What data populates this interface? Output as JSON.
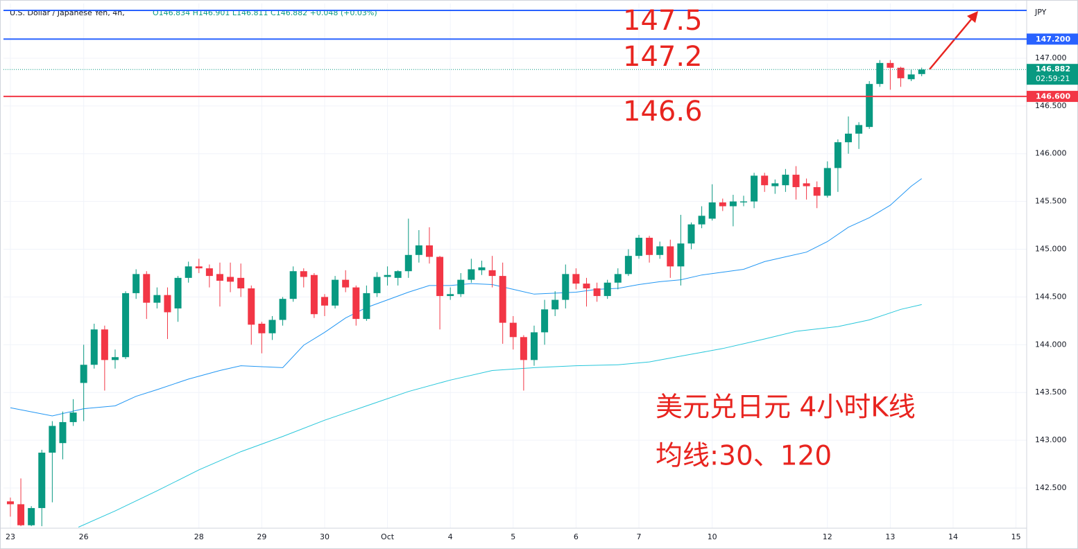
{
  "chart_data": {
    "type": "candlestick",
    "title": "U.S. Dollar / Japanese Yen, 4h,",
    "ohlc_text": "O146.834 H146.901 L146.811 C146.882 +0.048 (+0.03%)",
    "y_axis_label": "JPY",
    "categories": [
      null,
      null,
      null,
      null,
      null,
      null,
      null,
      null,
      null,
      null,
      null,
      null,
      null,
      null,
      null,
      null,
      null,
      null,
      null,
      null,
      null,
      null,
      null,
      null,
      null,
      null,
      null,
      null,
      null,
      null,
      null,
      null,
      null,
      null,
      null,
      null,
      null,
      null,
      null,
      null,
      null,
      null,
      null,
      null,
      null,
      null,
      null,
      null,
      null,
      null,
      null,
      null,
      null,
      null,
      null,
      null,
      null,
      null,
      null,
      null,
      null,
      null,
      null,
      null,
      null,
      null,
      null,
      null,
      null,
      null,
      null,
      null,
      null,
      null,
      null,
      null,
      null,
      null,
      null,
      null,
      null,
      null,
      null,
      null,
      null,
      null,
      null,
      null
    ],
    "open": [
      142.36,
      142.33,
      142.11,
      142.29,
      142.87,
      142.97,
      143.19,
      143.6,
      143.79,
      144.16,
      143.84,
      143.87,
      144.54,
      144.74,
      144.44,
      144.52,
      144.38,
      144.7,
      144.82,
      144.8,
      144.74,
      144.71,
      144.7,
      144.59,
      144.22,
      144.12,
      144.26,
      144.48,
      144.77,
      144.73,
      144.5,
      144.41,
      144.68,
      144.6,
      144.27,
      144.54,
      144.71,
      144.7,
      144.77,
      144.94,
      145.04,
      144.92,
      144.51,
      144.53,
      144.68,
      144.78,
      144.78,
      144.72,
      144.23,
      144.08,
      143.84,
      144.13,
      144.37,
      144.47,
      144.74,
      144.64,
      144.59,
      144.51,
      144.65,
      144.74,
      144.93,
      145.12,
      144.94,
      145.03,
      144.82,
      145.06,
      145.26,
      145.32,
      145.49,
      145.45,
      145.49,
      145.5,
      145.77,
      145.66,
      145.67,
      145.78,
      145.69,
      145.65,
      145.56,
      145.85,
      146.12,
      146.21,
      146.28,
      146.73,
      146.95,
      146.9,
      146.78,
      146.834
    ],
    "high": [
      142.4,
      142.6,
      142.31,
      142.9,
      143.2,
      143.3,
      143.43,
      144.0,
      144.22,
      144.2,
      143.95,
      144.56,
      144.79,
      144.77,
      144.6,
      144.6,
      144.72,
      144.87,
      144.9,
      144.84,
      144.86,
      144.86,
      144.85,
      144.62,
      144.24,
      144.3,
      144.5,
      144.82,
      144.8,
      144.75,
      144.53,
      144.72,
      144.78,
      144.62,
      144.62,
      144.76,
      144.82,
      144.78,
      145.32,
      145.2,
      145.23,
      144.93,
      144.6,
      144.75,
      144.9,
      144.88,
      144.93,
      144.86,
      144.3,
      144.1,
      144.2,
      144.47,
      144.56,
      144.84,
      144.8,
      144.7,
      144.65,
      144.68,
      144.8,
      145.0,
      145.15,
      145.14,
      145.08,
      145.1,
      145.36,
      145.28,
      145.45,
      145.68,
      145.53,
      145.57,
      145.56,
      145.8,
      145.8,
      145.73,
      145.84,
      145.87,
      145.74,
      145.71,
      145.92,
      146.15,
      146.39,
      146.33,
      146.76,
      146.98,
      146.98,
      146.91,
      146.88,
      146.901
    ],
    "low": [
      142.2,
      142.1,
      142.1,
      142.1,
      142.35,
      142.8,
      143.15,
      143.2,
      143.75,
      143.52,
      143.75,
      143.85,
      144.48,
      144.27,
      144.38,
      144.06,
      144.24,
      144.65,
      144.75,
      144.6,
      144.4,
      144.55,
      144.5,
      144.0,
      143.91,
      144.05,
      144.2,
      144.45,
      144.6,
      144.28,
      144.3,
      144.38,
      144.55,
      144.2,
      144.25,
      144.5,
      144.62,
      144.62,
      144.7,
      144.86,
      144.85,
      144.16,
      144.47,
      144.5,
      144.65,
      144.73,
      144.6,
      144.01,
      143.95,
      143.52,
      143.78,
      144.0,
      144.3,
      144.38,
      144.58,
      144.4,
      144.45,
      144.48,
      144.58,
      144.72,
      144.9,
      144.86,
      144.9,
      144.7,
      144.62,
      145.0,
      145.22,
      145.3,
      145.4,
      145.24,
      145.45,
      145.43,
      145.6,
      145.58,
      145.6,
      145.52,
      145.52,
      145.43,
      145.54,
      145.6,
      146.0,
      146.05,
      146.26,
      146.7,
      146.67,
      146.7,
      146.76,
      146.811
    ],
    "close": [
      142.33,
      142.11,
      142.29,
      142.87,
      143.15,
      143.19,
      143.29,
      143.79,
      144.16,
      143.84,
      143.87,
      144.54,
      144.74,
      144.44,
      144.52,
      144.34,
      144.7,
      144.82,
      144.8,
      144.72,
      144.67,
      144.66,
      144.59,
      144.21,
      144.12,
      144.26,
      144.48,
      144.77,
      144.71,
      144.32,
      144.41,
      144.68,
      144.6,
      144.27,
      144.54,
      144.71,
      144.73,
      144.77,
      144.94,
      145.04,
      144.92,
      144.51,
      144.53,
      144.68,
      144.79,
      144.81,
      144.72,
      144.23,
      144.08,
      143.84,
      144.13,
      144.37,
      144.47,
      144.74,
      144.64,
      144.59,
      144.51,
      144.65,
      144.74,
      144.93,
      145.12,
      144.94,
      145.03,
      144.82,
      145.06,
      145.26,
      145.35,
      145.49,
      145.45,
      145.5,
      145.5,
      145.77,
      145.67,
      145.69,
      145.78,
      145.65,
      145.66,
      145.56,
      145.85,
      146.12,
      146.21,
      146.3,
      146.73,
      146.95,
      146.9,
      146.79,
      146.83,
      146.882
    ],
    "up_color": "#089981",
    "down_color": "#f23645",
    "series": [
      {
        "type": "line",
        "color": "#2196f3",
        "x": [
          0,
          4,
          7,
          10,
          12,
          14,
          17,
          20,
          22,
          24,
          26,
          28,
          30,
          32,
          34,
          36,
          38,
          40,
          42,
          44,
          46,
          48,
          50,
          52,
          54,
          56,
          58,
          60,
          62,
          64,
          66,
          68,
          70,
          72,
          74,
          76,
          78,
          80,
          82,
          84,
          86,
          87
        ],
        "values": [
          143.34,
          143.255,
          143.33,
          143.36,
          143.46,
          143.53,
          143.64,
          143.73,
          143.78,
          143.77,
          143.76,
          143.995,
          144.13,
          144.28,
          144.39,
          144.47,
          144.55,
          144.62,
          144.62,
          144.64,
          144.63,
          144.58,
          144.53,
          144.54,
          144.55,
          144.58,
          144.59,
          144.63,
          144.66,
          144.68,
          144.73,
          144.76,
          144.79,
          144.87,
          144.92,
          144.97,
          145.08,
          145.23,
          145.33,
          145.46,
          145.66,
          145.74
        ]
      },
      {
        "type": "line",
        "color": "#26c6da",
        "x": [
          6.5,
          10,
          14,
          18,
          22,
          26,
          30,
          34,
          38,
          42,
          46,
          50,
          54,
          58,
          61,
          64,
          68,
          72,
          75,
          79,
          82,
          85,
          87
        ],
        "values": [
          142.09,
          142.26,
          142.47,
          142.69,
          142.88,
          143.04,
          143.21,
          143.36,
          143.51,
          143.63,
          143.73,
          143.76,
          143.78,
          143.79,
          143.82,
          143.88,
          143.96,
          144.06,
          144.14,
          144.19,
          144.26,
          144.37,
          144.42
        ]
      }
    ],
    "hlines": [
      {
        "value": 147.5,
        "color": "#2962ff"
      },
      {
        "value": 147.2,
        "label": "147.200",
        "color": "#2962ff"
      },
      {
        "value": 146.6,
        "label": "146.600",
        "color": "#f23645"
      }
    ],
    "last_price": {
      "value": 146.882,
      "label": "146.882",
      "timer": "02:59:21",
      "color": "#089981"
    },
    "xlim": [
      -0.66,
      97.02
    ],
    "ylim": [
      142.079,
      147.573
    ],
    "xticks": [
      {
        "value": 0,
        "label": "23"
      },
      {
        "value": 7,
        "label": "26"
      },
      {
        "value": 18,
        "label": "28"
      },
      {
        "value": 24,
        "label": "29"
      },
      {
        "value": 30,
        "label": "30"
      },
      {
        "value": 36,
        "label": "Oct"
      },
      {
        "value": 42,
        "label": "4"
      },
      {
        "value": 48,
        "label": "5"
      },
      {
        "value": 54,
        "label": "6"
      },
      {
        "value": 60,
        "label": "7"
      },
      {
        "value": 67,
        "label": "10"
      },
      {
        "value": 78,
        "label": "12"
      },
      {
        "value": 84,
        "label": "13"
      },
      {
        "value": 90,
        "label": "14"
      },
      {
        "value": 96,
        "label": "15"
      }
    ],
    "yticks": [
      {
        "value": 142.5,
        "label": "142.500"
      },
      {
        "value": 143,
        "label": "143.000"
      },
      {
        "value": 143.5,
        "label": "143.500"
      },
      {
        "value": 144,
        "label": "144.000"
      },
      {
        "value": 144.5,
        "label": "144.500"
      },
      {
        "value": 145,
        "label": "145.000"
      },
      {
        "value": 145.5,
        "label": "145.500"
      },
      {
        "value": 146,
        "label": "146.000"
      },
      {
        "value": 146.5,
        "label": "146.500"
      },
      {
        "value": 147,
        "label": "147.000"
      }
    ],
    "grid": true,
    "annotations": [
      {
        "text": "147.5"
      },
      {
        "text": "147.2"
      },
      {
        "text": "146.6"
      },
      {
        "text": "美元兑日元 4小时K线"
      },
      {
        "text": "均线:30、120"
      }
    ]
  }
}
